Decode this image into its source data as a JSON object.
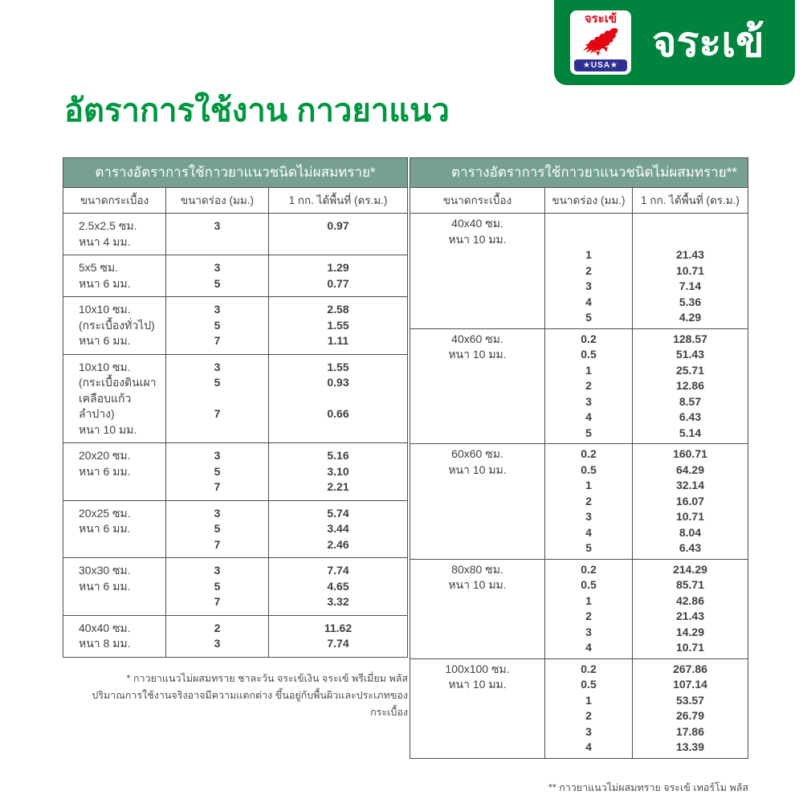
{
  "logo": {
    "badge_brand_text": "จระเข้",
    "badge_usa_text": "★USA★",
    "brand_text": "จระเข้",
    "colors": {
      "green": "#00833D",
      "red": "#E30613",
      "blue": "#2E3192"
    }
  },
  "title": "อัตราการใช้งาน กาวยาแนว",
  "colors": {
    "title_green": "#009640",
    "table_header_bg": "#76A192",
    "border": "#4D4D4D",
    "text": "#414042"
  },
  "left_table": {
    "title": "ตารางอัตราการใช้กาวยาแนวชนิดไม่ผสมทราย*",
    "columns": [
      "ขนาดกระเบื้อง",
      "ขนาดร่อง (มม.)",
      "1 กก. ได้พื้นที่ (ตร.ม.)"
    ],
    "rows": [
      {
        "tile": [
          "2.5x2.5 ซม.",
          "หนา 4 มม."
        ],
        "groove": [
          "3"
        ],
        "area": [
          "0.97"
        ]
      },
      {
        "tile": [
          "5x5 ซม.",
          "หนา 6 มม."
        ],
        "groove": [
          "3",
          "5"
        ],
        "area": [
          "1.29",
          "0.77"
        ]
      },
      {
        "tile": [
          "10x10 ซม.",
          "(กระเบื้องทั่วไป)",
          "หนา 6 มม."
        ],
        "groove": [
          "3",
          "5",
          "7"
        ],
        "area": [
          "2.58",
          "1.55",
          "1.11"
        ]
      },
      {
        "tile": [
          "10x10 ซม.",
          "(กระเบื้องดินเผา",
          "เคลือบแก้วลำปาง)",
          "หนา 10 มม."
        ],
        "groove": [
          "3",
          "5",
          "",
          "7"
        ],
        "area": [
          "1.55",
          "0.93",
          "",
          "0.66"
        ]
      },
      {
        "tile": [
          "20x20 ซม.",
          "หนา 6 มม."
        ],
        "groove": [
          "3",
          "5",
          "7"
        ],
        "area": [
          "5.16",
          "3.10",
          "2.21"
        ]
      },
      {
        "tile": [
          "20x25 ซม.",
          "หนา 6 มม."
        ],
        "groove": [
          "3",
          "5",
          "7"
        ],
        "area": [
          "5.74",
          "3.44",
          "2.46"
        ]
      },
      {
        "tile": [
          "30x30 ซม.",
          "หนา 6 มม."
        ],
        "groove": [
          "3",
          "5",
          "7"
        ],
        "area": [
          "7.74",
          "4.65",
          "3.32"
        ]
      },
      {
        "tile": [
          "40x40 ซม.",
          "หนา 8 มม."
        ],
        "groove": [
          "2",
          "3"
        ],
        "area": [
          "11.62",
          "7.74"
        ]
      }
    ],
    "footnote_line1": "* กาวยาแนวไม่ผสมทราย ชาละวัน จระเข้เงิน จระเข้ พรีเมี่ยม พลัส",
    "footnote_line2": "ปริมาณการใช้งานจริงอาจมีความแตกต่าง ขึ้นอยู่กับพื้นผิวและประเภทของกระเบื้อง"
  },
  "right_table": {
    "title": "ตารางอัตราการใช้กาวยาแนวชนิดไม่ผสมทราย**",
    "columns": [
      "ขนาดกระเบื้อง",
      "ขนาดร่อง (มม.)",
      "1 กก. ได้พื้นที่ (ตร.ม.)"
    ],
    "rows": [
      {
        "tile": [
          "40x40 ซม.",
          "หนา 10 มม."
        ],
        "groove": [
          "",
          "",
          "1",
          "2",
          "3",
          "4",
          "5"
        ],
        "area": [
          "",
          "",
          "21.43",
          "10.71",
          "7.14",
          "5.36",
          "4.29"
        ]
      },
      {
        "tile": [
          "40x60 ซม.",
          "หนา 10 มม."
        ],
        "groove": [
          "0.2",
          "0.5",
          "1",
          "2",
          "3",
          "4",
          "5"
        ],
        "area": [
          "128.57",
          "51.43",
          "25.71",
          "12.86",
          "8.57",
          "6.43",
          "5.14"
        ]
      },
      {
        "tile": [
          "60x60 ซม.",
          "หนา 10 มม."
        ],
        "groove": [
          "0.2",
          "0.5",
          "1",
          "2",
          "3",
          "4",
          "5"
        ],
        "area": [
          "160.71",
          "64.29",
          "32.14",
          "16.07",
          "10.71",
          "8.04",
          "6.43"
        ]
      },
      {
        "tile": [
          "80x80 ซม.",
          "หนา 10 มม."
        ],
        "groove": [
          "0.2",
          "0.5",
          "1",
          "2",
          "3",
          "4"
        ],
        "area": [
          "214.29",
          "85.71",
          "42.86",
          "21.43",
          "14.29",
          "10.71"
        ]
      },
      {
        "tile": [
          "100x100 ซม.",
          "หนา 10 มม."
        ],
        "groove": [
          "0.2",
          "0.5",
          "1",
          "2",
          "3",
          "4"
        ],
        "area": [
          "267.86",
          "107.14",
          "53.57",
          "26.79",
          "17.86",
          "13.39"
        ]
      }
    ],
    "footnote_line1": "** กาวยาแนวไม่ผสมทราย จระเข้ เทอร์โม พลัส"
  }
}
